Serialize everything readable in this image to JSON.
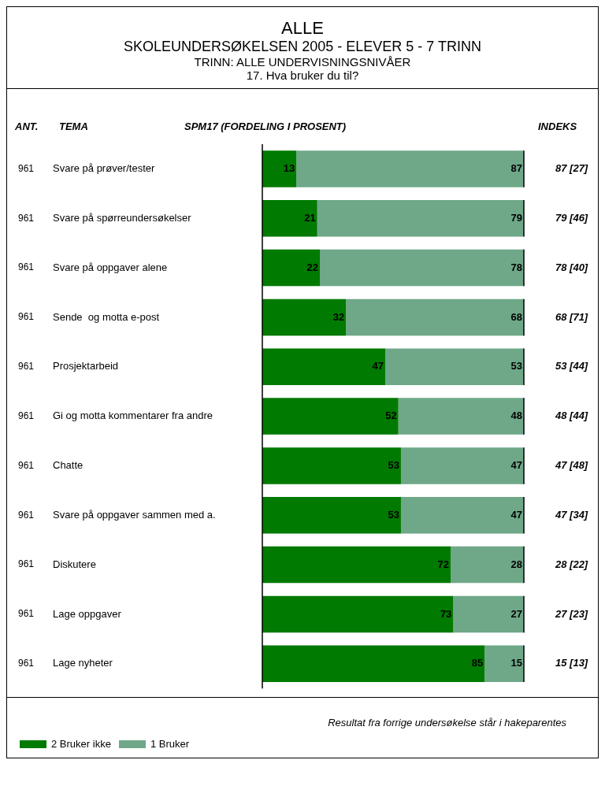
{
  "chart_data": {
    "type": "bar",
    "orientation": "horizontal",
    "stacked": true,
    "title": "ALLE",
    "subtitle": "SKOLEUNDERSØKELSEN 2005 - ELEVER 5 - 7 TRINN",
    "categories": [
      "Svare på prøver/tester",
      "Svare på spørreundersøkelser",
      "Svare på oppgaver alene",
      "Sende  og motta e-post",
      "Prosjektarbeid",
      "Gi og motta kommentarer fra andre",
      "Chatte",
      "Svare på oppgaver sammen med a.",
      "Diskutere",
      "Lage oppgaver",
      "Lage nyheter"
    ],
    "series": [
      {
        "name": "2 Bruker ikke",
        "color": "#007a00",
        "values": [
          13,
          21,
          22,
          32,
          47,
          52,
          53,
          53,
          72,
          73,
          85
        ]
      },
      {
        "name": "1 Bruker",
        "color": "#6ea888",
        "values": [
          87,
          79,
          78,
          68,
          53,
          48,
          47,
          47,
          28,
          27,
          15
        ]
      }
    ],
    "xlim": [
      0,
      100
    ],
    "tick_labels": "y",
    "grid": false,
    "legend": "bottom left",
    "data_labels": true,
    "annotations": [
      "TRINN: ALLE UNDERVISNINGSNIVÅER",
      "17. Hva bruker du til?",
      "ANT.",
      "TEMA",
      "SPM17 (FORDELING I PROSENT)",
      "INDEKS",
      "Resultat fra forrige undersøkelse står i hakeparentes",
      "961",
      "961",
      "961",
      "961",
      "961",
      "961",
      "961",
      "961",
      "961",
      "961",
      "961",
      "87 [27]",
      "79 [46]",
      "78 [40]",
      "68 [71]",
      "53 [44]",
      "48 [44]",
      "47 [48]",
      "47 [34]",
      "28 [22]",
      "27 [23]",
      "15 [13]"
    ]
  }
}
